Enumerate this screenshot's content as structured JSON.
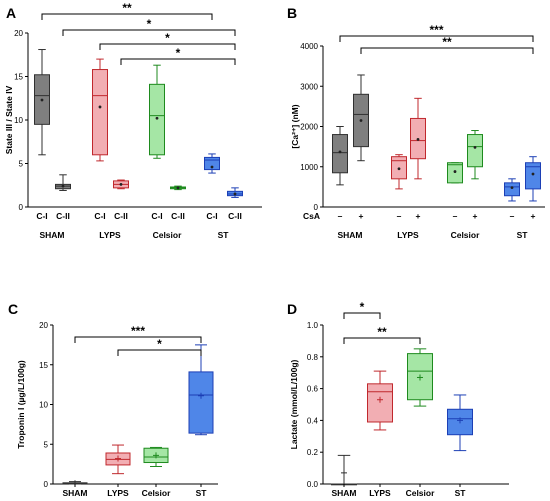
{
  "figure": {
    "panels": [
      "A",
      "B",
      "C",
      "D"
    ]
  },
  "chart_data": [
    {
      "id": "A",
      "type": "box",
      "letter": "A",
      "ylabel": "State III / State IV",
      "ylim": [
        0,
        20
      ],
      "yticks": [
        0,
        5,
        10,
        15,
        20
      ],
      "groups": [
        "SHAM",
        "LYPS",
        "Celsior",
        "ST"
      ],
      "sublabels": [
        "C-I",
        "C-II"
      ],
      "boxes": [
        {
          "group": "SHAM",
          "sub": "C-I",
          "color": "#7f7f7f",
          "min": 6.0,
          "q1": 9.5,
          "median": 12.8,
          "q3": 15.2,
          "max": 18.1,
          "mean": 12.3
        },
        {
          "group": "SHAM",
          "sub": "C-II",
          "color": "#7f7f7f",
          "min": 1.9,
          "q1": 2.1,
          "median": 2.4,
          "q3": 2.6,
          "max": 3.7,
          "mean": 2.4
        },
        {
          "group": "LYPS",
          "sub": "C-I",
          "color": "#f2aeb3",
          "min": 5.3,
          "q1": 6.0,
          "median": 12.8,
          "q3": 15.8,
          "max": 17.0,
          "mean": 11.5
        },
        {
          "group": "LYPS",
          "sub": "C-II",
          "color": "#f2aeb3",
          "min": 2.1,
          "q1": 2.2,
          "median": 2.6,
          "q3": 3.0,
          "max": 3.1,
          "mean": 2.6
        },
        {
          "group": "Celsior",
          "sub": "C-I",
          "color": "#a5e6a5",
          "min": 5.6,
          "q1": 6.0,
          "median": 10.5,
          "q3": 14.1,
          "max": 16.3,
          "mean": 10.2
        },
        {
          "group": "Celsior",
          "sub": "C-II",
          "color": "#a5e6a5",
          "min": 2.0,
          "q1": 2.1,
          "median": 2.2,
          "q3": 2.3,
          "max": 2.4,
          "mean": 2.2
        },
        {
          "group": "ST",
          "sub": "C-I",
          "color": "#4f86e8",
          "min": 3.9,
          "q1": 4.3,
          "median": 5.4,
          "q3": 5.7,
          "max": 6.1,
          "mean": 4.6
        },
        {
          "group": "ST",
          "sub": "C-II",
          "color": "#4f86e8",
          "min": 1.1,
          "q1": 1.3,
          "median": 1.5,
          "q3": 1.8,
          "max": 2.2,
          "mean": 1.5
        }
      ],
      "significance": [
        {
          "label": "**",
          "from_group": "SHAM",
          "from_sub": "C-I",
          "to_group": "ST",
          "to_sub": "C-I"
        },
        {
          "label": "*",
          "from_group": "SHAM",
          "from_sub": "C-II",
          "to_group": "ST",
          "to_sub": "C-II"
        },
        {
          "label": "*",
          "from_group": "LYPS",
          "from_sub": "C-I",
          "to_group": "ST",
          "to_sub": "C-II"
        },
        {
          "label": "*",
          "from_group": "LYPS",
          "from_sub": "C-II",
          "to_group": "ST",
          "to_sub": "C-II"
        }
      ]
    },
    {
      "id": "B",
      "type": "box",
      "letter": "B",
      "ylabel": "[Ca²⁺] (nM)",
      "ylim": [
        0,
        4000
      ],
      "yticks": [
        0,
        1000,
        2000,
        3000,
        4000
      ],
      "groups": [
        "SHAM",
        "LYPS",
        "Celsior",
        "ST"
      ],
      "sublabels": [
        "–",
        "+"
      ],
      "row_label": "CsA",
      "boxes": [
        {
          "group": "SHAM",
          "sub": "–",
          "color": "#7f7f7f",
          "min": 550,
          "q1": 850,
          "median": 1350,
          "q3": 1800,
          "max": 2000,
          "mean": 1370
        },
        {
          "group": "SHAM",
          "sub": "+",
          "color": "#7f7f7f",
          "min": 1150,
          "q1": 1500,
          "median": 2300,
          "q3": 2800,
          "max": 3280,
          "mean": 2150
        },
        {
          "group": "LYPS",
          "sub": "–",
          "color": "#f2aeb3",
          "min": 450,
          "q1": 700,
          "median": 1150,
          "q3": 1250,
          "max": 1300,
          "mean": 950
        },
        {
          "group": "LYPS",
          "sub": "+",
          "color": "#f2aeb3",
          "min": 700,
          "q1": 1200,
          "median": 1650,
          "q3": 2200,
          "max": 2700,
          "mean": 1680
        },
        {
          "group": "Celsior",
          "sub": "–",
          "color": "#a5e6a5",
          "min": 600,
          "q1": 600,
          "median": 1050,
          "q3": 1100,
          "max": 1100,
          "mean": 880
        },
        {
          "group": "Celsior",
          "sub": "+",
          "color": "#a5e6a5",
          "min": 700,
          "q1": 1000,
          "median": 1500,
          "q3": 1800,
          "max": 1900,
          "mean": 1480
        },
        {
          "group": "ST",
          "sub": "–",
          "color": "#4f86e8",
          "min": 150,
          "q1": 280,
          "median": 500,
          "q3": 600,
          "max": 700,
          "mean": 480
        },
        {
          "group": "ST",
          "sub": "+",
          "color": "#4f86e8",
          "min": 150,
          "q1": 450,
          "median": 1000,
          "q3": 1100,
          "max": 1250,
          "mean": 820
        }
      ],
      "significance": [
        {
          "label": "***",
          "from_group": "SHAM",
          "from_sub": "–",
          "to_group": "ST",
          "to_sub": "+"
        },
        {
          "label": "**",
          "from_group": "SHAM",
          "from_sub": "+",
          "to_group": "ST",
          "to_sub": "+"
        }
      ]
    },
    {
      "id": "C",
      "type": "box",
      "letter": "C",
      "ylabel": "Troponin I (µg/L/100g)",
      "ylim": [
        0,
        20
      ],
      "yticks": [
        0,
        5,
        10,
        15,
        20
      ],
      "groups": [
        "SHAM",
        "LYPS",
        "Celsior",
        "ST"
      ],
      "boxes": [
        {
          "group": "SHAM",
          "color": "#7f7f7f",
          "min": 0.0,
          "q1": 0.05,
          "median": 0.1,
          "q3": 0.15,
          "max": 0.3,
          "mean": 0.1
        },
        {
          "group": "LYPS",
          "color": "#f2aeb3",
          "min": 1.3,
          "q1": 2.4,
          "median": 3.1,
          "q3": 3.9,
          "max": 4.9,
          "mean": 3.2
        },
        {
          "group": "Celsior",
          "color": "#a5e6a5",
          "min": 2.2,
          "q1": 2.7,
          "median": 3.4,
          "q3": 4.5,
          "max": 4.6,
          "mean": 3.6
        },
        {
          "group": "ST",
          "color": "#4f86e8",
          "min": 6.2,
          "q1": 6.4,
          "median": 11.2,
          "q3": 14.1,
          "max": 17.5,
          "mean": 11.1
        }
      ],
      "significance": [
        {
          "label": "***",
          "from_group": "SHAM",
          "to_group": "ST"
        },
        {
          "label": "*",
          "from_group": "LYPS",
          "to_group": "ST"
        }
      ]
    },
    {
      "id": "D",
      "type": "box",
      "letter": "D",
      "ylabel": "Lactate (mmol/L/100g)",
      "ylim": [
        0,
        1.0
      ],
      "yticks": [
        "0.0",
        "0.2",
        "0.4",
        "0.6",
        "0.8",
        "1.0"
      ],
      "groups": [
        "SHAM",
        "LYPS",
        "Celsior",
        "ST"
      ],
      "boxes": [
        {
          "group": "SHAM",
          "color": "#7f7f7f",
          "min": 0.0,
          "q1": 0.0,
          "median": 0.0,
          "q3": 0.0,
          "max": 0.18,
          "mean": 0.07
        },
        {
          "group": "LYPS",
          "color": "#f2aeb3",
          "min": 0.34,
          "q1": 0.39,
          "median": 0.58,
          "q3": 0.63,
          "max": 0.71,
          "mean": 0.53
        },
        {
          "group": "Celsior",
          "color": "#a5e6a5",
          "min": 0.49,
          "q1": 0.53,
          "median": 0.71,
          "q3": 0.82,
          "max": 0.85,
          "mean": 0.67
        },
        {
          "group": "ST",
          "color": "#4f86e8",
          "min": 0.21,
          "q1": 0.31,
          "median": 0.41,
          "q3": 0.47,
          "max": 0.56,
          "mean": 0.4
        }
      ],
      "significance": [
        {
          "label": "**",
          "from_group": "SHAM",
          "to_group": "Celsior"
        },
        {
          "label": "*",
          "from_group": "SHAM",
          "to_group": "LYPS"
        }
      ]
    }
  ]
}
